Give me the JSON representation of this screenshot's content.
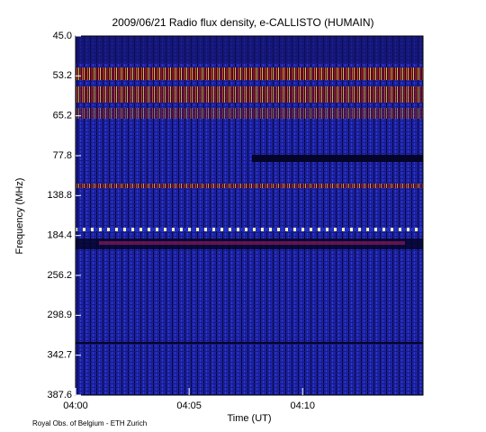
{
  "chart_data": {
    "type": "spectrogram",
    "title": "2009/06/21  Radio flux density, e-CALLISTO (HUMAIN)",
    "x_label": "Time (UT)",
    "y_label": "Frequency (MHz)",
    "footer": "Royal Obs. of Belgium - ETH Zurich",
    "xlim": [
      0,
      15.3
    ],
    "xticks": [
      {
        "value": 0,
        "label": "04:00"
      },
      {
        "value": 5,
        "label": "04:05"
      },
      {
        "value": 10,
        "label": "04:10"
      }
    ],
    "y_labels": [
      "45.0",
      "53.2",
      "65.2",
      "77.8",
      "138.8",
      "184.4",
      "256.2",
      "298.9",
      "342.7",
      "387.6"
    ]
  }
}
